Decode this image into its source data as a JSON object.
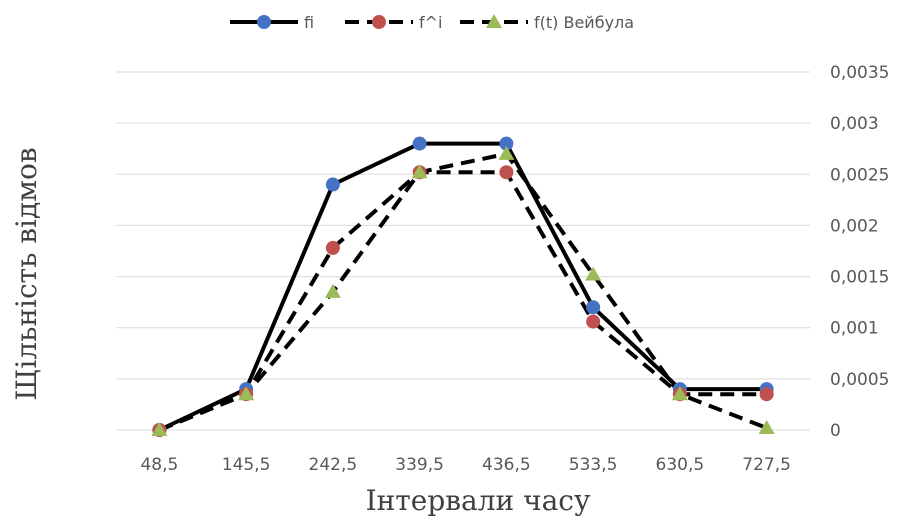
{
  "chart_data": {
    "type": "line",
    "xlabel": "Інтервали часу",
    "ylabel": "Щільність відмов",
    "categories": [
      "48,5",
      "145,5",
      "242,5",
      "339,5",
      "436,5",
      "533,5",
      "630,5",
      "727,5"
    ],
    "y_ticks": [
      "0",
      "0,0005",
      "0,001",
      "0,0015",
      "0,002",
      "0,0025",
      "0,003",
      "0,0035"
    ],
    "ylim": [
      0,
      0.0035
    ],
    "y_axis_side": "right",
    "grid": "horizontal",
    "legend_position": "top",
    "series": [
      {
        "name": "fi",
        "values": [
          0.0,
          0.0004,
          0.0024,
          0.0028,
          0.0028,
          0.0012,
          0.0004,
          0.0004
        ],
        "color": "#000000",
        "marker_color": "#4472C4",
        "marker": "circle",
        "line_style": "solid"
      },
      {
        "name": "f^i",
        "values": [
          0.0,
          0.00035,
          0.00178,
          0.00252,
          0.00252,
          0.00106,
          0.00035,
          0.00035
        ],
        "color": "#000000",
        "marker_color": "#C0504D",
        "marker": "circle",
        "line_style": "dashed"
      },
      {
        "name": "f(t) Вейбула",
        "values": [
          0.0,
          0.00035,
          0.00135,
          0.00252,
          0.0027,
          0.00152,
          0.00035,
          2e-05
        ],
        "color": "#000000",
        "marker_color": "#9BBB59",
        "marker": "triangle",
        "line_style": "dashed"
      }
    ]
  }
}
